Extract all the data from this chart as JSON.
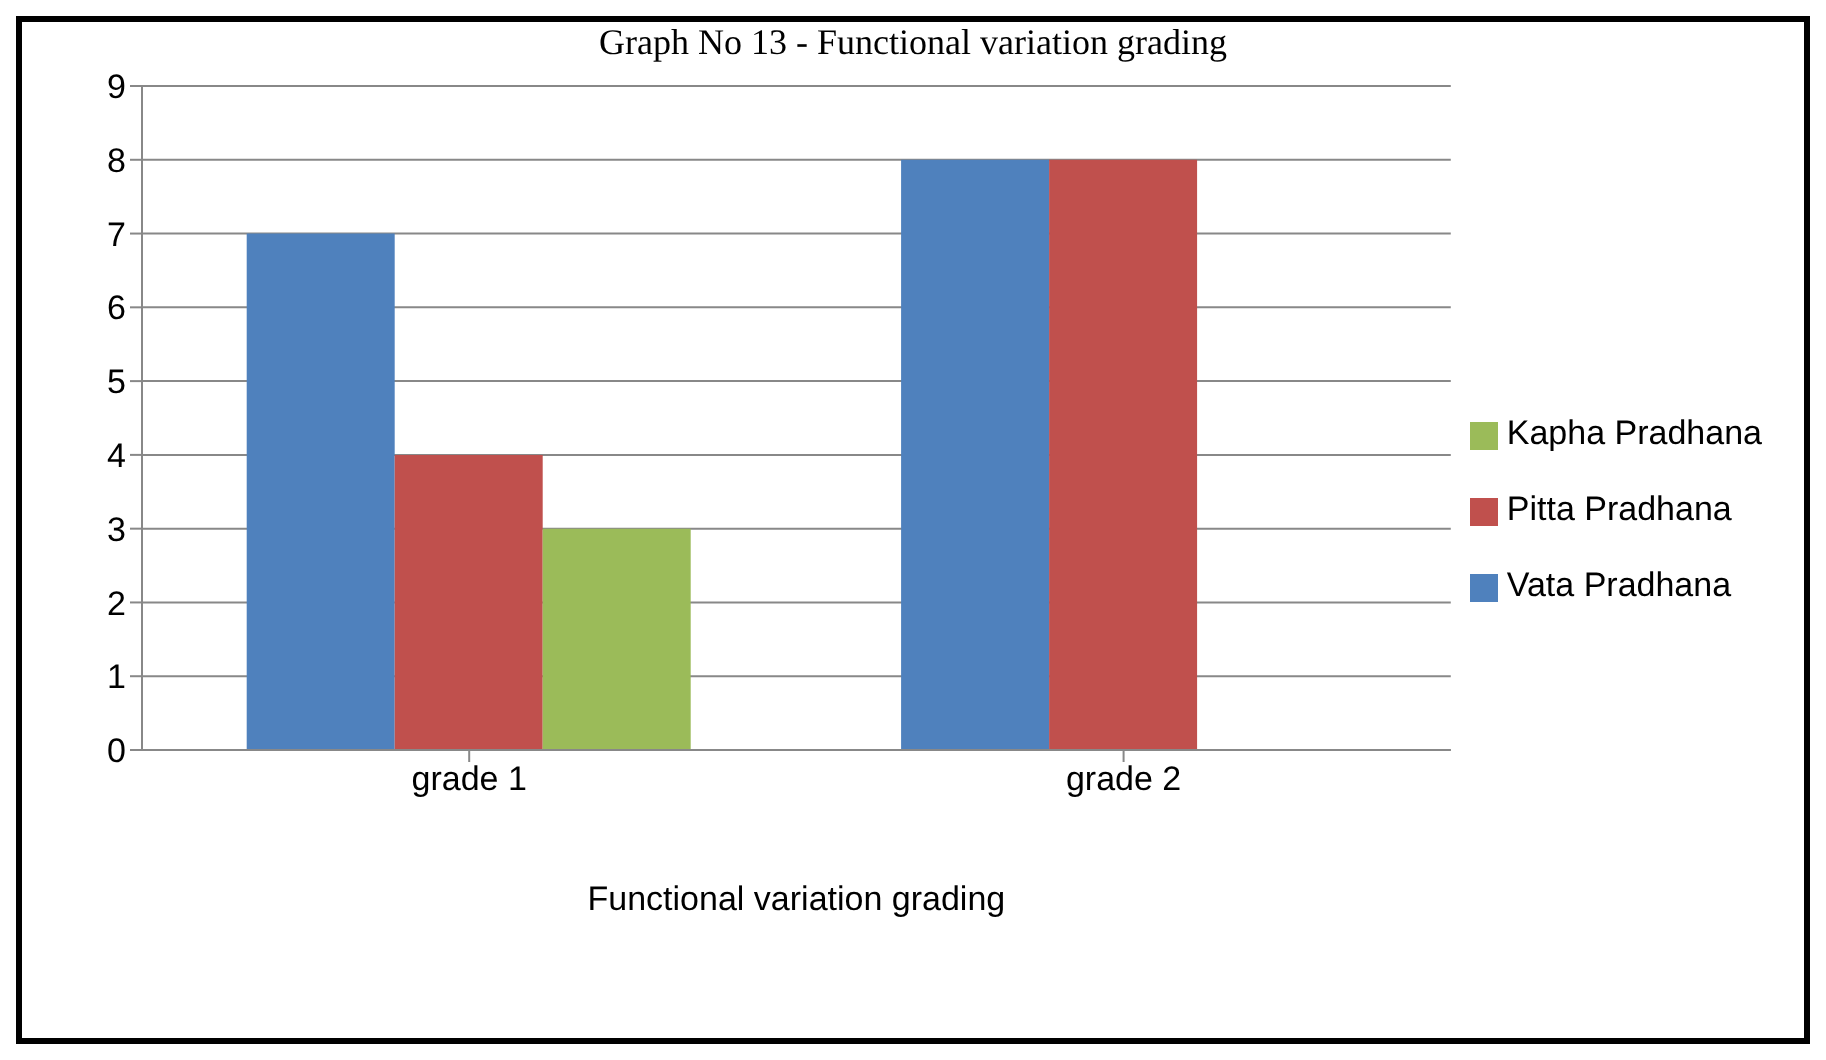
{
  "chart_data": {
    "type": "bar",
    "title": "Graph No 13 - Functional variation grading",
    "xlabel": "Functional variation grading",
    "categories": [
      "grade 1",
      "grade 2"
    ],
    "series": [
      {
        "name": "Vata Pradhana",
        "color": "#4f81bd",
        "values": [
          7,
          8
        ]
      },
      {
        "name": "Pitta Pradhana",
        "color": "#c0504d",
        "values": [
          4,
          8
        ]
      },
      {
        "name": "Kapha Pradhana",
        "color": "#9bbb59",
        "values": [
          3,
          0
        ]
      }
    ],
    "ylim": [
      0,
      9
    ],
    "yticks": [
      0,
      1,
      2,
      3,
      4,
      5,
      6,
      7,
      8,
      9
    ],
    "grid": "y",
    "legend": "right"
  }
}
